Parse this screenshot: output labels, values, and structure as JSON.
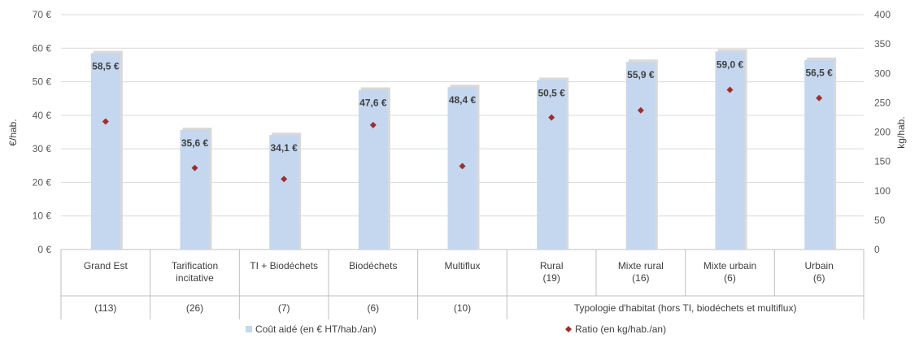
{
  "chart_data": {
    "type": "bar",
    "categories": [
      "Grand Est",
      "Tarification incitative",
      "TI + Biodéchets",
      "Biodéchets",
      "Multiflux",
      "Rural",
      "Mixte rural",
      "Mixte urbain",
      "Urbain"
    ],
    "category_lines": [
      [
        "Grand Est"
      ],
      [
        "Tarification",
        "incitative"
      ],
      [
        "TI + Biodéchets"
      ],
      [
        "Biodéchets"
      ],
      [
        "Multiflux"
      ],
      [
        "Rural",
        "(19)"
      ],
      [
        "Mixte rural",
        "(16)"
      ],
      [
        "Mixte urbain",
        "(6)"
      ],
      [
        "Urbain",
        "(6)"
      ]
    ],
    "group_labels": [
      "(113)",
      "(26)",
      "(7)",
      "(6)",
      "(10)",
      "Typologie d'habitat (hors TI, biodéchets et multiflux)"
    ],
    "series": [
      {
        "name": "Coût aidé (en € HT/hab./an)",
        "type": "bar",
        "axis": "left",
        "values": [
          58.5,
          35.6,
          34.1,
          47.6,
          48.4,
          50.5,
          55.9,
          59.0,
          56.5
        ],
        "labels": [
          "58,5 €",
          "35,6 €",
          "34,1 €",
          "47,6 €",
          "48,4 €",
          "50,5 €",
          "55,9 €",
          "59,0 €",
          "56,5 €"
        ],
        "color": "#C5D7EF"
      },
      {
        "name": "Ratio (en kg/hab./an)",
        "type": "scatter",
        "axis": "right",
        "values": [
          218,
          139,
          120,
          212,
          142,
          225,
          237,
          272,
          258
        ],
        "color": "#9C2F2F"
      }
    ],
    "ylabel": "€/hab.",
    "y2label": "kg/hab.",
    "ylim": [
      0,
      70
    ],
    "y2lim": [
      0,
      400
    ],
    "yticks": [
      "0 €",
      "10 €",
      "20 €",
      "30 €",
      "40 €",
      "50 €",
      "60 €",
      "70 €"
    ],
    "y2ticks": [
      "0",
      "50",
      "100",
      "150",
      "200",
      "250",
      "300",
      "350",
      "400"
    ],
    "grid": true,
    "legend_position": "bottom"
  }
}
